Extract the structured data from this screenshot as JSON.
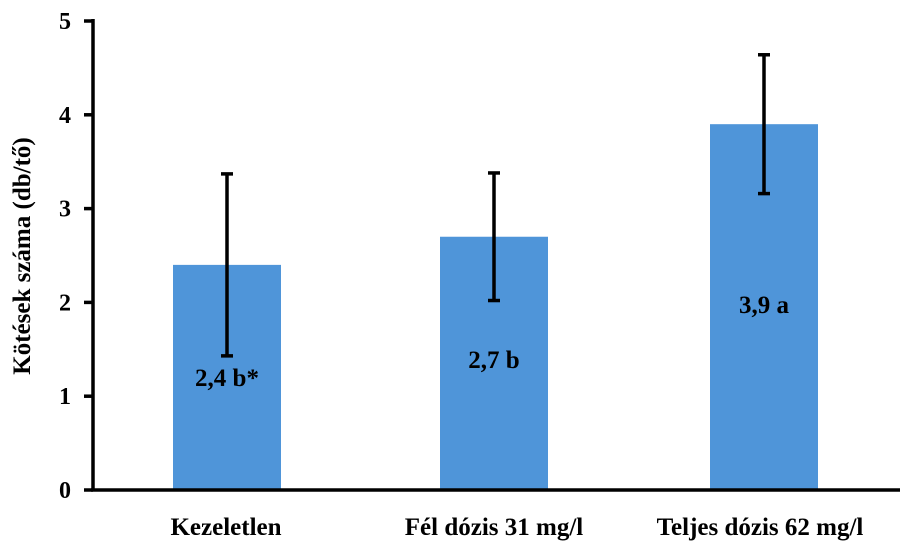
{
  "chart_data": {
    "type": "bar",
    "title": "",
    "xlabel": "",
    "ylabel": "Kötések száma  (db/tő)",
    "ylim": [
      0,
      5
    ],
    "yticks": [
      0,
      1,
      2,
      3,
      4,
      5
    ],
    "categories": [
      "Kezeletlen",
      "Fél dózis 31 mg/l",
      "Teljes dózis 62 mg/l"
    ],
    "values": [
      2.4,
      2.7,
      3.9
    ],
    "error_low": [
      1.43,
      2.02,
      3.16
    ],
    "error_high": [
      3.37,
      3.38,
      4.64
    ],
    "data_labels": [
      "2,4 b*",
      "2,7 b",
      "3,9 a"
    ],
    "grid": false,
    "legend": "none",
    "colors": {
      "bar": "#4f95d9",
      "axis": "#000000",
      "error_bar": "#000000"
    }
  }
}
